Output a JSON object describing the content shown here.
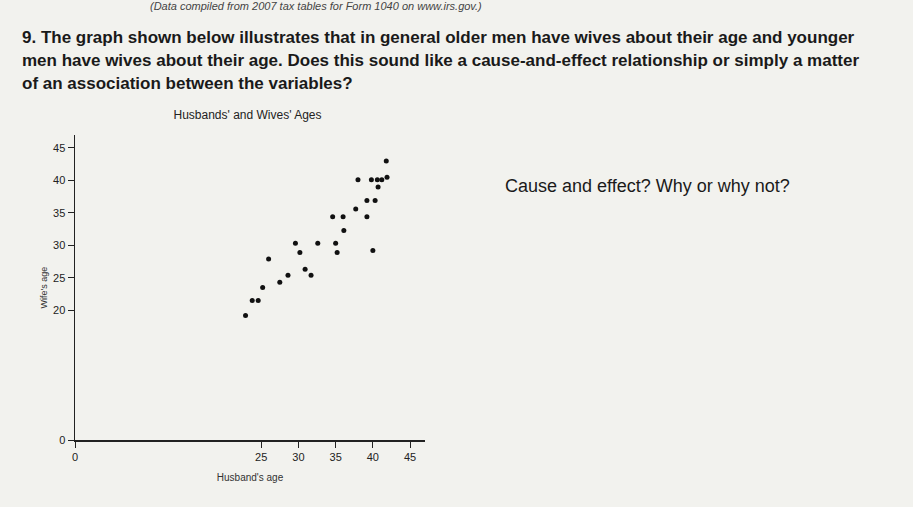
{
  "header": "(Data compiled from 2007 tax tables for Form 1040 on www.irs.gov.)",
  "question": "9. The graph shown below illustrates that in general older men have wives about their age and younger men have wives about their age. Does this sound like a cause-and-effect relationship or simply a matter of an association between the variables?",
  "prompt": "Cause and effect? Why or why not?",
  "chart_data": {
    "type": "scatter",
    "title": "Husbands' and Wives' Ages",
    "x_label": "Husband's age",
    "y_label": "Wife's age",
    "x": [
      22.9,
      23.8,
      24.6,
      25.2,
      26.0,
      27.5,
      28.6,
      29.6,
      30.2,
      30.9,
      31.7,
      32.6,
      35.0,
      35.2,
      34.6,
      36.0,
      36.1,
      37.7,
      38.0,
      39.2,
      39.2,
      39.8,
      40.0,
      40.3,
      40.6,
      40.7,
      41.2,
      41.9,
      41.8
    ],
    "values": [
      19.2,
      21.5,
      21.5,
      23.5,
      27.9,
      24.3,
      25.4,
      30.3,
      28.9,
      26.3,
      25.4,
      30.3,
      30.3,
      28.9,
      34.4,
      34.4,
      32.3,
      35.6,
      40.1,
      36.9,
      34.4,
      40.1,
      29.2,
      36.9,
      40.1,
      39.0,
      40.1,
      40.5,
      43.0
    ],
    "color": "#111111",
    "xlim": [
      0,
      47
    ],
    "xticks": [
      0,
      25,
      30,
      35,
      40,
      45
    ],
    "ylim": [
      0,
      47
    ],
    "yticks": [
      0,
      20,
      25,
      30,
      35,
      40,
      45
    ],
    "grid": false
  }
}
